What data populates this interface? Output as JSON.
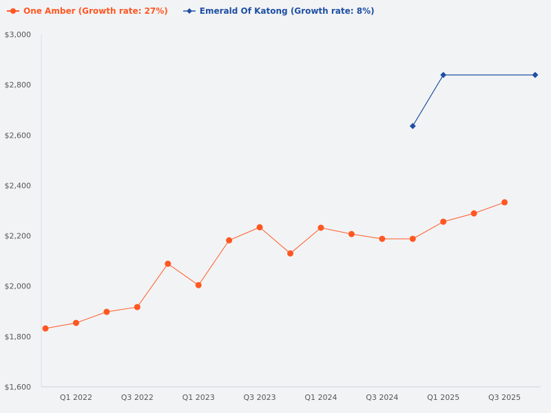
{
  "chart_data": {
    "type": "line",
    "categories": [
      "Q4 2021",
      "Q1 2022",
      "Q2 2022",
      "Q3 2022",
      "Q4 2022",
      "Q1 2023",
      "Q2 2023",
      "Q3 2023",
      "Q4 2023",
      "Q1 2024",
      "Q2 2024",
      "Q3 2024",
      "Q4 2024",
      "Q1 2025",
      "Q2 2025",
      "Q3 2025",
      "Q4 2025"
    ],
    "x_tick_labels": [
      "Q1 2022",
      "Q3 2022",
      "Q1 2023",
      "Q3 2023",
      "Q1 2024",
      "Q3 2024",
      "Q1 2025",
      "Q3 2025"
    ],
    "y_tick_labels": [
      "$1,600",
      "$1,800",
      "$2,000",
      "$2,200",
      "$2,400",
      "$2,600",
      "$2,800",
      "$3,000"
    ],
    "ylim": [
      1600,
      3000
    ],
    "y_ticks": [
      1600,
      1800,
      2000,
      2200,
      2400,
      2600,
      2800,
      3000
    ],
    "grid": false,
    "legend_position": "top-left",
    "series": [
      {
        "name": "One Amber (Growth rate: 27%)",
        "color": "#ff5722",
        "marker": "circle",
        "values": [
          1832,
          1854,
          1898,
          1917,
          2089,
          2004,
          2182,
          2234,
          2130,
          2232,
          2207,
          2188,
          2188,
          2256,
          2289,
          2333,
          null
        ]
      },
      {
        "name": "Emerald Of Katong (Growth rate: 8%)",
        "color": "#1e4fa3",
        "marker": "diamond",
        "values": [
          null,
          null,
          null,
          null,
          null,
          null,
          null,
          null,
          null,
          null,
          null,
          null,
          2636,
          2839,
          null,
          null,
          2839
        ]
      }
    ]
  }
}
